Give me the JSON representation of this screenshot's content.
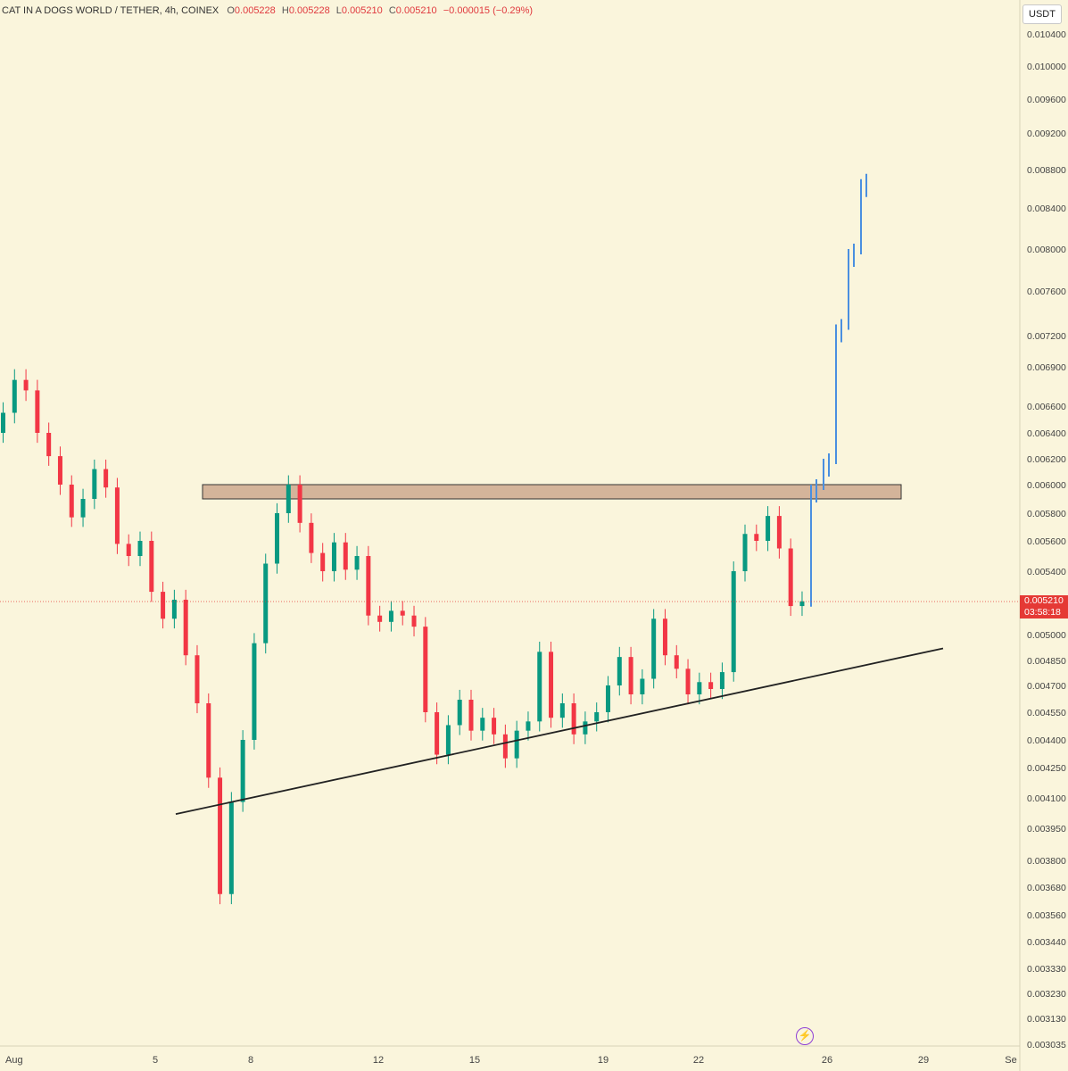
{
  "header": {
    "symbol": "CAT IN A DOGS WORLD / TETHER, 4h, COINEX",
    "open_label": "O",
    "open": "0.005228",
    "high_label": "H",
    "high": "0.005228",
    "low_label": "L",
    "low": "0.005210",
    "close_label": "C",
    "close": "0.005210",
    "change": "−0.000015 (−0.29%)"
  },
  "currency_button": "USDT",
  "current_price": {
    "price": "0.005210",
    "countdown": "03:58:18",
    "color": "#e53935"
  },
  "icons": {
    "bolt": "lightning-bolt-icon"
  },
  "chart_data": {
    "type": "candlestick",
    "y_axis_labels": [
      "0.010400",
      "0.010000",
      "0.009600",
      "0.009200",
      "0.008800",
      "0.008400",
      "0.008000",
      "0.007600",
      "0.007200",
      "0.006900",
      "0.006600",
      "0.006400",
      "0.006200",
      "0.006000",
      "0.005800",
      "0.005600",
      "0.005400",
      "0.005000",
      "0.004850",
      "0.004700",
      "0.004550",
      "0.004400",
      "0.004250",
      "0.004100",
      "0.003950",
      "0.003800",
      "0.003680",
      "0.003560",
      "0.003440",
      "0.003330",
      "0.003230",
      "0.003130",
      "0.003035"
    ],
    "x_axis_labels": [
      "Aug",
      "5",
      "8",
      "12",
      "15",
      "19",
      "22",
      "26",
      "29",
      "Se"
    ],
    "colors": {
      "up": "#089981",
      "down": "#f23645",
      "projection": "#4a8fe0",
      "zone": "#d4b49a"
    },
    "resistance_zone": {
      "top": 0.006,
      "bottom": 0.0059
    },
    "support_trendline": {
      "from": {
        "date": "Aug 6",
        "price": 0.00402
      },
      "to": {
        "date": "Aug 28",
        "price": 0.00492
      }
    },
    "candle_closes": [
      0.00655,
      0.0068,
      0.00672,
      0.0064,
      0.00622,
      0.006,
      0.00577,
      0.0059,
      0.00612,
      0.00598,
      0.00558,
      0.0055,
      0.0056,
      0.00527,
      0.0051,
      0.00522,
      0.00488,
      0.0046,
      0.0042,
      0.00365,
      0.00408,
      0.0044,
      0.00495,
      0.00545,
      0.0058,
      0.006,
      0.00573,
      0.00552,
      0.0054,
      0.00559,
      0.00541,
      0.0055,
      0.00512,
      0.00508,
      0.00515,
      0.00512,
      0.00505,
      0.00455,
      0.00432,
      0.00448,
      0.00462,
      0.00445,
      0.00452,
      0.00443,
      0.0043,
      0.00445,
      0.0045,
      0.0049,
      0.00452,
      0.0046,
      0.00443,
      0.0045,
      0.00455,
      0.0047,
      0.00487,
      0.00465,
      0.00474,
      0.0051,
      0.00488,
      0.0048,
      0.00465,
      0.00472,
      0.00468,
      0.00478,
      0.0054,
      0.00565,
      0.0056,
      0.00578,
      0.00555,
      0.00518,
      0.00521
    ],
    "projection_closes": [
      0.006,
      0.0062,
      0.0073,
      0.008,
      0.0087
    ]
  }
}
